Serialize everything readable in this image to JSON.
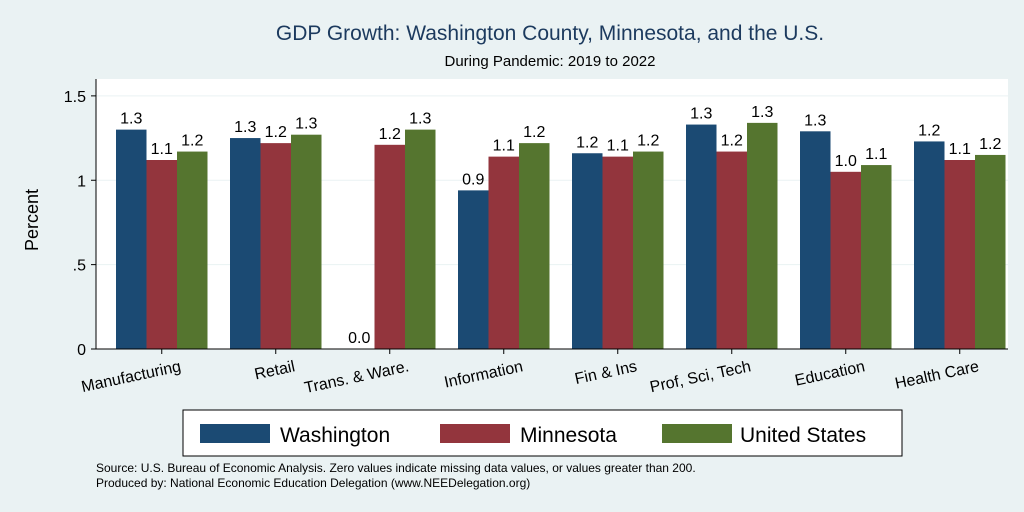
{
  "chart_data": {
    "type": "bar",
    "title": "GDP Growth: Washington County, Minnesota, and the U.S.",
    "subtitle": "During Pandemic: 2019 to 2022",
    "xlabel": "",
    "ylabel": "Percent",
    "ylim": [
      0,
      1.6
    ],
    "yticks": [
      0,
      0.5,
      1,
      1.5
    ],
    "ytick_labels": [
      "0",
      ".5",
      "1",
      "1.5"
    ],
    "grid": true,
    "legend_position": "bottom",
    "categories": [
      "Manufacturing",
      "Retail",
      "Trans. & Ware.",
      "Information",
      "Fin & Ins",
      "Prof, Sci, Tech",
      "Education",
      "Health Care"
    ],
    "series": [
      {
        "name": "Washington",
        "color": "#1b4a73",
        "values": [
          1.3,
          1.25,
          0.0,
          0.94,
          1.16,
          1.33,
          1.29,
          1.23
        ],
        "labels": [
          "1.3",
          "1.3",
          "0.0",
          "0.9",
          "1.2",
          "1.3",
          "1.3",
          "1.2"
        ]
      },
      {
        "name": "Minnesota",
        "color": "#93353d",
        "values": [
          1.12,
          1.22,
          1.21,
          1.14,
          1.14,
          1.17,
          1.05,
          1.12
        ],
        "labels": [
          "1.1",
          "1.2",
          "1.2",
          "1.1",
          "1.1",
          "1.2",
          "1.0",
          "1.1"
        ]
      },
      {
        "name": "United States",
        "color": "#55752f",
        "values": [
          1.17,
          1.27,
          1.3,
          1.22,
          1.17,
          1.34,
          1.09,
          1.15
        ],
        "labels": [
          "1.2",
          "1.3",
          "1.3",
          "1.2",
          "1.2",
          "1.3",
          "1.1",
          "1.2"
        ]
      }
    ]
  },
  "footer": {
    "source": "Source: U.S. Bureau of Economic Analysis. Zero values indicate missing data values, or values greater than 200.",
    "produced": "Produced by: National Economic Education Delegation (www.NEEDelegation.org)"
  },
  "colors": {
    "background": "#eaf2f3",
    "plot_background": "#ffffff",
    "title": "#1c3a5e"
  }
}
